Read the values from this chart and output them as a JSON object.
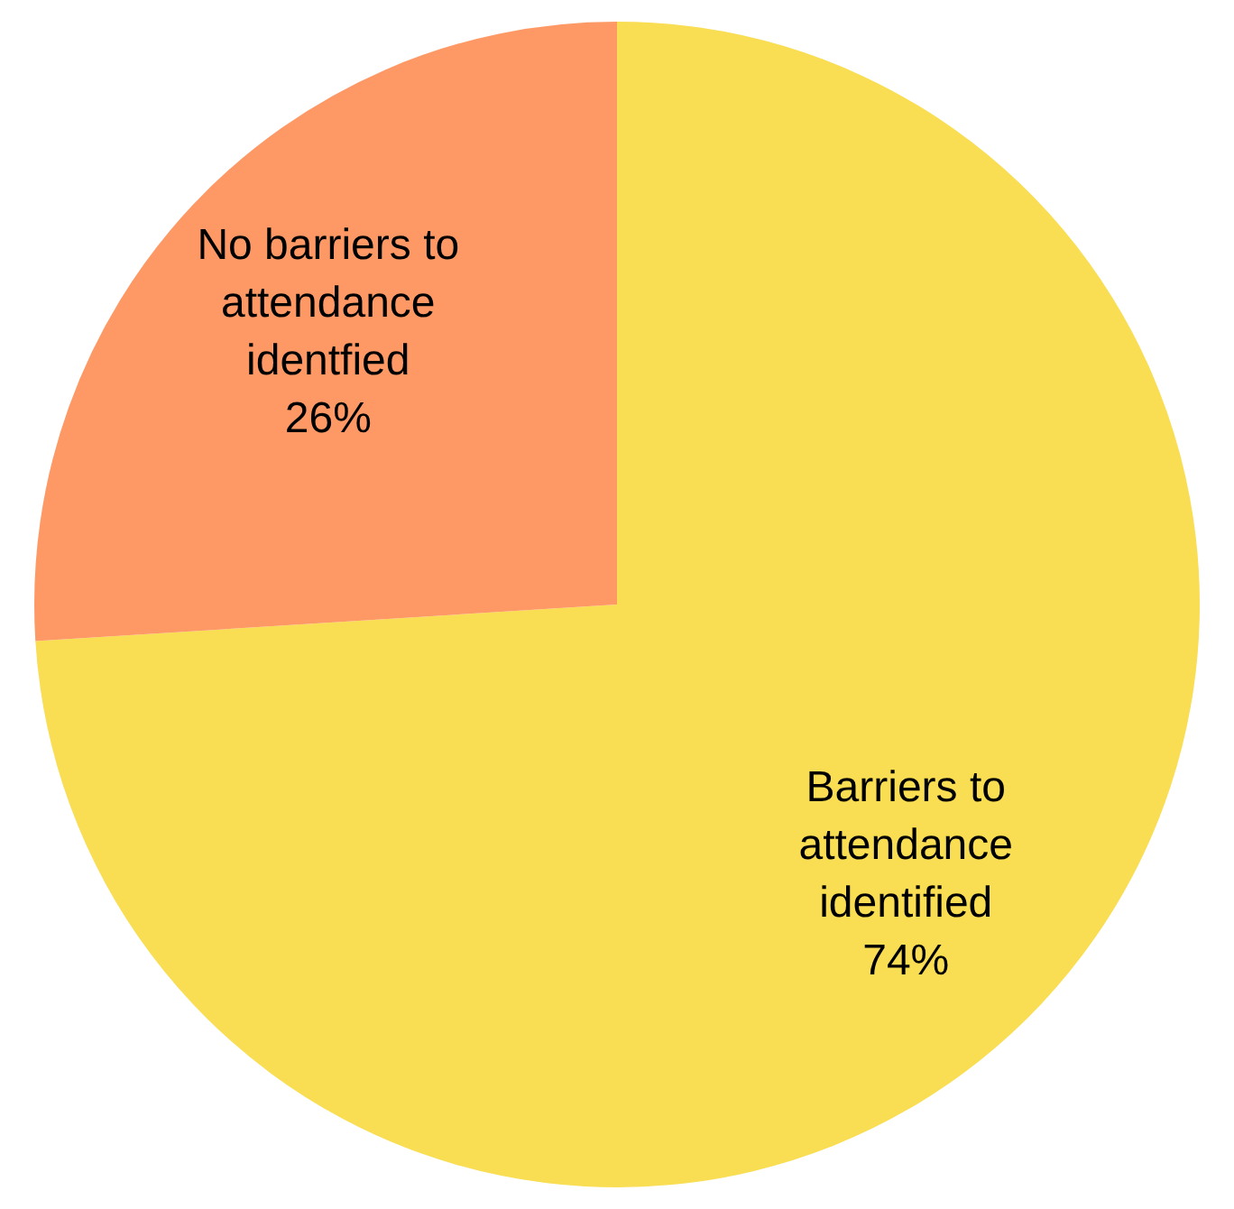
{
  "chart_data": {
    "type": "pie",
    "categories": [
      "Barriers to attendance identified",
      "No barriers to attendance identfied"
    ],
    "values": [
      74,
      26
    ],
    "colors": [
      "#f9dd52",
      "#fe9966"
    ],
    "value_labels": [
      "74%",
      "26%"
    ],
    "legend": false
  }
}
